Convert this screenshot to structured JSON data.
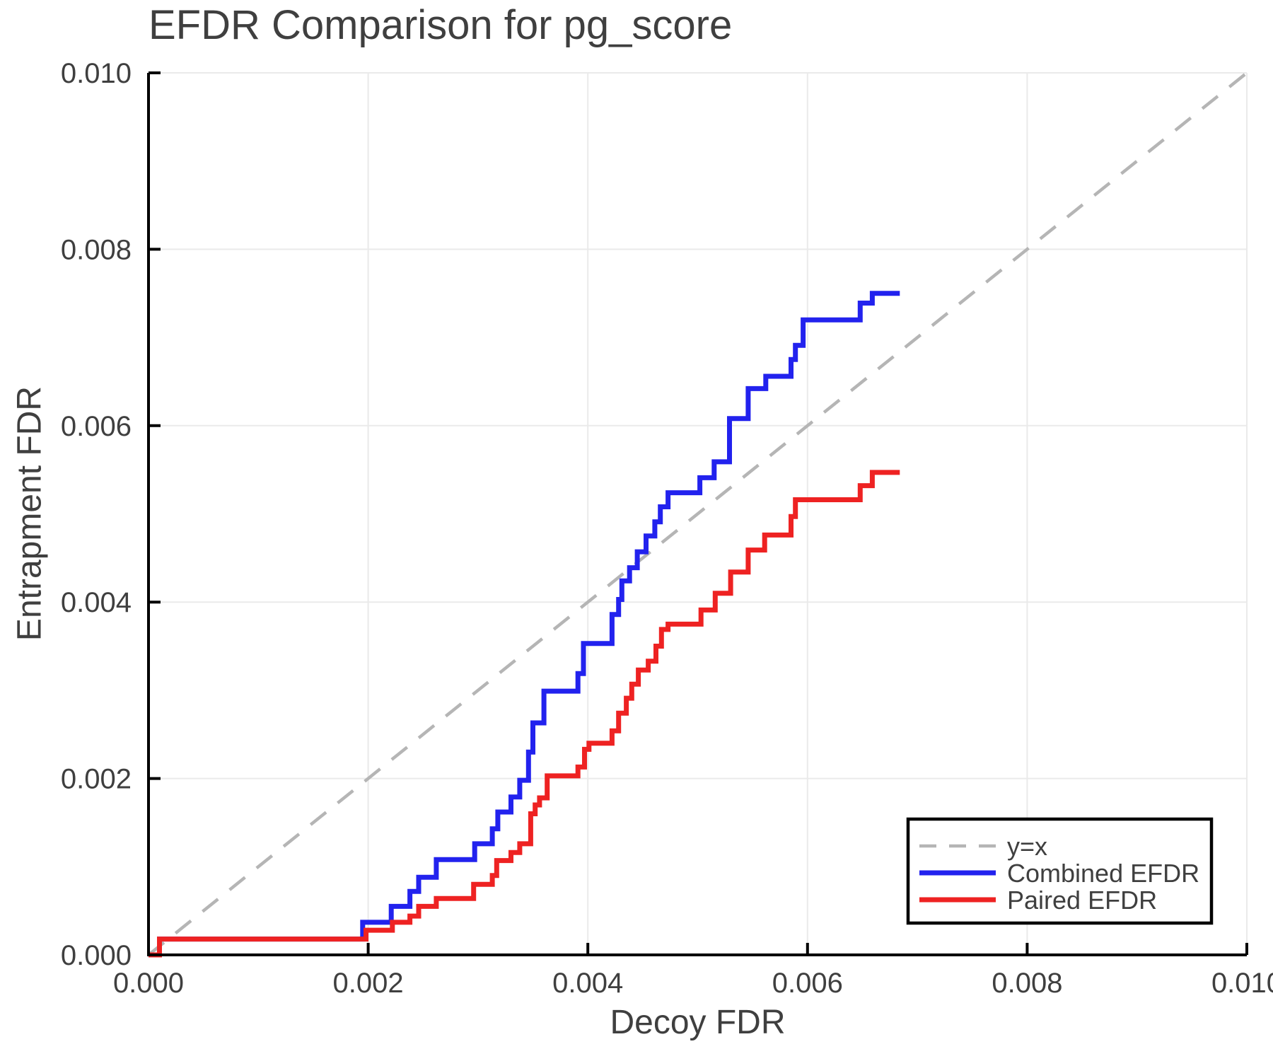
{
  "chart_data": {
    "type": "line",
    "title": "EFDR Comparison for pg_score",
    "xlabel": "Decoy FDR",
    "ylabel": "Entrapment FDR",
    "xlim": [
      0.0,
      0.01
    ],
    "ylim": [
      0.0,
      0.01
    ],
    "grid": true,
    "xticks": {
      "values": [
        0.0,
        0.002,
        0.004,
        0.006,
        0.008,
        0.01
      ],
      "labels": [
        "0.000",
        "0.002",
        "0.004",
        "0.006",
        "0.008",
        "0.010"
      ]
    },
    "yticks": {
      "values": [
        0.0,
        0.002,
        0.004,
        0.006,
        0.008,
        0.01
      ],
      "labels": [
        "0.000",
        "0.002",
        "0.004",
        "0.006",
        "0.008",
        "0.010"
      ]
    },
    "legend": {
      "position": "bottom-right",
      "entries": [
        {
          "label": "y=x",
          "color": "#b5b5b5",
          "dashed": true
        },
        {
          "label": "Combined EFDR",
          "color": "#2222ee",
          "dashed": false
        },
        {
          "label": "Paired EFDR",
          "color": "#ee2222",
          "dashed": false
        }
      ]
    },
    "series": [
      {
        "name": "y=x",
        "step": false,
        "dashed": true,
        "color": "#b5b5b5",
        "width": 4.5,
        "points": [
          [
            0.0,
            0.0
          ],
          [
            0.01,
            0.01
          ]
        ]
      },
      {
        "name": "Combined EFDR",
        "step": true,
        "dashed": false,
        "color": "#2222ee",
        "width": 7,
        "points": [
          [
            0.0,
            0.0
          ],
          [
            0.0001,
            0.00018
          ],
          [
            0.00195,
            0.00037
          ],
          [
            0.00221,
            0.00055
          ],
          [
            0.00238,
            0.00072
          ],
          [
            0.00246,
            0.00088
          ],
          [
            0.00262,
            0.00108
          ],
          [
            0.00297,
            0.00126
          ],
          [
            0.00313,
            0.00143
          ],
          [
            0.00318,
            0.00162
          ],
          [
            0.0033,
            0.00179
          ],
          [
            0.00338,
            0.00198
          ],
          [
            0.00346,
            0.0023
          ],
          [
            0.0035,
            0.00263
          ],
          [
            0.0036,
            0.00299
          ],
          [
            0.00391,
            0.00319
          ],
          [
            0.00396,
            0.00353
          ],
          [
            0.00422,
            0.00386
          ],
          [
            0.00428,
            0.00403
          ],
          [
            0.00431,
            0.00424
          ],
          [
            0.00438,
            0.00439
          ],
          [
            0.00445,
            0.00457
          ],
          [
            0.00453,
            0.00475
          ],
          [
            0.00461,
            0.00491
          ],
          [
            0.00466,
            0.00508
          ],
          [
            0.00473,
            0.00524
          ],
          [
            0.00502,
            0.00541
          ],
          [
            0.00515,
            0.00559
          ],
          [
            0.00529,
            0.00608
          ],
          [
            0.00546,
            0.00642
          ],
          [
            0.00562,
            0.00656
          ],
          [
            0.00585,
            0.00675
          ],
          [
            0.00589,
            0.00691
          ],
          [
            0.00596,
            0.0072
          ],
          [
            0.00648,
            0.00739
          ],
          [
            0.00659,
            0.0075
          ],
          [
            0.00684,
            0.0075
          ]
        ]
      },
      {
        "name": "Paired EFDR",
        "step": true,
        "dashed": false,
        "color": "#ee2222",
        "width": 7,
        "points": [
          [
            0.0,
            0.0
          ],
          [
            0.0001,
            0.00018
          ],
          [
            0.00198,
            0.00028
          ],
          [
            0.00222,
            0.00037
          ],
          [
            0.00238,
            0.00044
          ],
          [
            0.00246,
            0.00055
          ],
          [
            0.00262,
            0.00064
          ],
          [
            0.00296,
            0.0008
          ],
          [
            0.00313,
            0.0009
          ],
          [
            0.00317,
            0.00107
          ],
          [
            0.0033,
            0.00116
          ],
          [
            0.00338,
            0.00126
          ],
          [
            0.00348,
            0.0016
          ],
          [
            0.00352,
            0.0017
          ],
          [
            0.00356,
            0.00178
          ],
          [
            0.00363,
            0.00203
          ],
          [
            0.00391,
            0.00213
          ],
          [
            0.00397,
            0.00233
          ],
          [
            0.00401,
            0.0024
          ],
          [
            0.00422,
            0.00254
          ],
          [
            0.00428,
            0.00274
          ],
          [
            0.00435,
            0.00291
          ],
          [
            0.0044,
            0.00307
          ],
          [
            0.00446,
            0.00323
          ],
          [
            0.00455,
            0.00333
          ],
          [
            0.00462,
            0.0035
          ],
          [
            0.00467,
            0.00369
          ],
          [
            0.00473,
            0.00375
          ],
          [
            0.00503,
            0.00391
          ],
          [
            0.00516,
            0.0041
          ],
          [
            0.0053,
            0.00434
          ],
          [
            0.00546,
            0.00459
          ],
          [
            0.00561,
            0.00476
          ],
          [
            0.00585,
            0.00497
          ],
          [
            0.00589,
            0.00516
          ],
          [
            0.00648,
            0.00532
          ],
          [
            0.00659,
            0.00547
          ],
          [
            0.00684,
            0.00547
          ]
        ]
      }
    ],
    "colors": {
      "background": "#ffffff",
      "grid": "#eaeaea",
      "axis": "#000000",
      "text": "#3f3f3f",
      "legend_border": "#000000",
      "legend_fill": "#ffffff"
    }
  }
}
